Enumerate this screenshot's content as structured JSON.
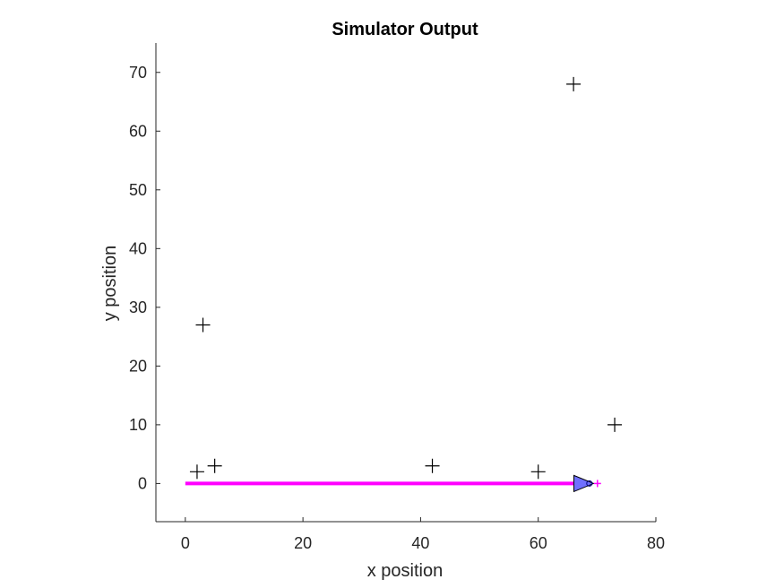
{
  "chart_data": {
    "type": "scatter",
    "title": "Simulator Output",
    "xlabel": "x position",
    "ylabel": "y position",
    "xlim": [
      -5,
      80
    ],
    "ylim": [
      -6.5,
      75
    ],
    "xticks": [
      0,
      20,
      40,
      60,
      80
    ],
    "yticks": [
      0,
      10,
      20,
      30,
      40,
      50,
      60,
      70
    ],
    "grid": false,
    "landmarks": {
      "marker": "plus",
      "color": "#000000",
      "x": [
        2,
        3,
        5,
        42,
        60,
        66,
        73
      ],
      "y": [
        2,
        27,
        3,
        3,
        2,
        68,
        10
      ]
    },
    "trajectory": {
      "color": "#ff00ff",
      "x": [
        0,
        69
      ],
      "y": [
        0,
        0
      ]
    },
    "robot": {
      "x": 68.5,
      "y": 0,
      "heading_deg": 0,
      "fill": "#7070ff",
      "edge": "#000000"
    },
    "estimate_marker": {
      "x": 69,
      "y": 0,
      "color": "#ff00ff"
    }
  }
}
